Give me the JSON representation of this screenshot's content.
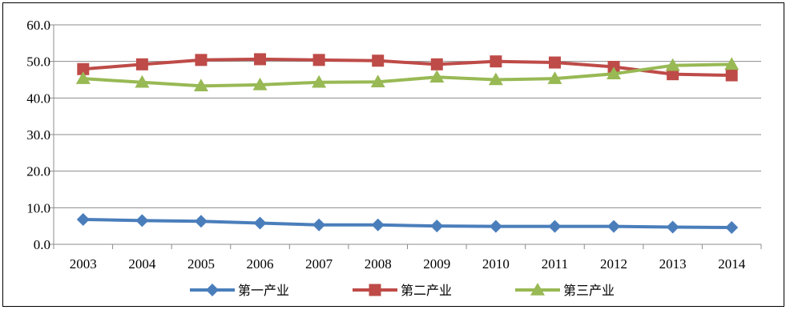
{
  "chart_data": {
    "type": "line",
    "title": "",
    "xlabel": "",
    "ylabel": "",
    "categories": [
      "2003",
      "2004",
      "2005",
      "2006",
      "2007",
      "2008",
      "2009",
      "2010",
      "2011",
      "2012",
      "2013",
      "2014"
    ],
    "ylim": [
      0,
      60
    ],
    "yticks": [
      "0.0",
      "10.0",
      "20.0",
      "30.0",
      "40.0",
      "50.0",
      "60.0"
    ],
    "grid": true,
    "legend_position": "bottom",
    "series": [
      {
        "name": "第一产业",
        "color": "#4a7ebb",
        "marker": "diamond",
        "values": [
          6.8,
          6.5,
          6.3,
          5.8,
          5.3,
          5.3,
          5.0,
          4.9,
          4.9,
          4.9,
          4.7,
          4.6
        ]
      },
      {
        "name": "第二产业",
        "color": "#be4b48",
        "marker": "square",
        "values": [
          47.9,
          49.2,
          50.4,
          50.6,
          50.4,
          50.2,
          49.2,
          50.0,
          49.7,
          48.5,
          46.5,
          46.2
        ]
      },
      {
        "name": "第三产业",
        "color": "#98b954",
        "marker": "triangle",
        "values": [
          45.3,
          44.3,
          43.3,
          43.6,
          44.3,
          44.4,
          45.7,
          45.0,
          45.3,
          46.6,
          48.9,
          49.2
        ]
      }
    ]
  }
}
